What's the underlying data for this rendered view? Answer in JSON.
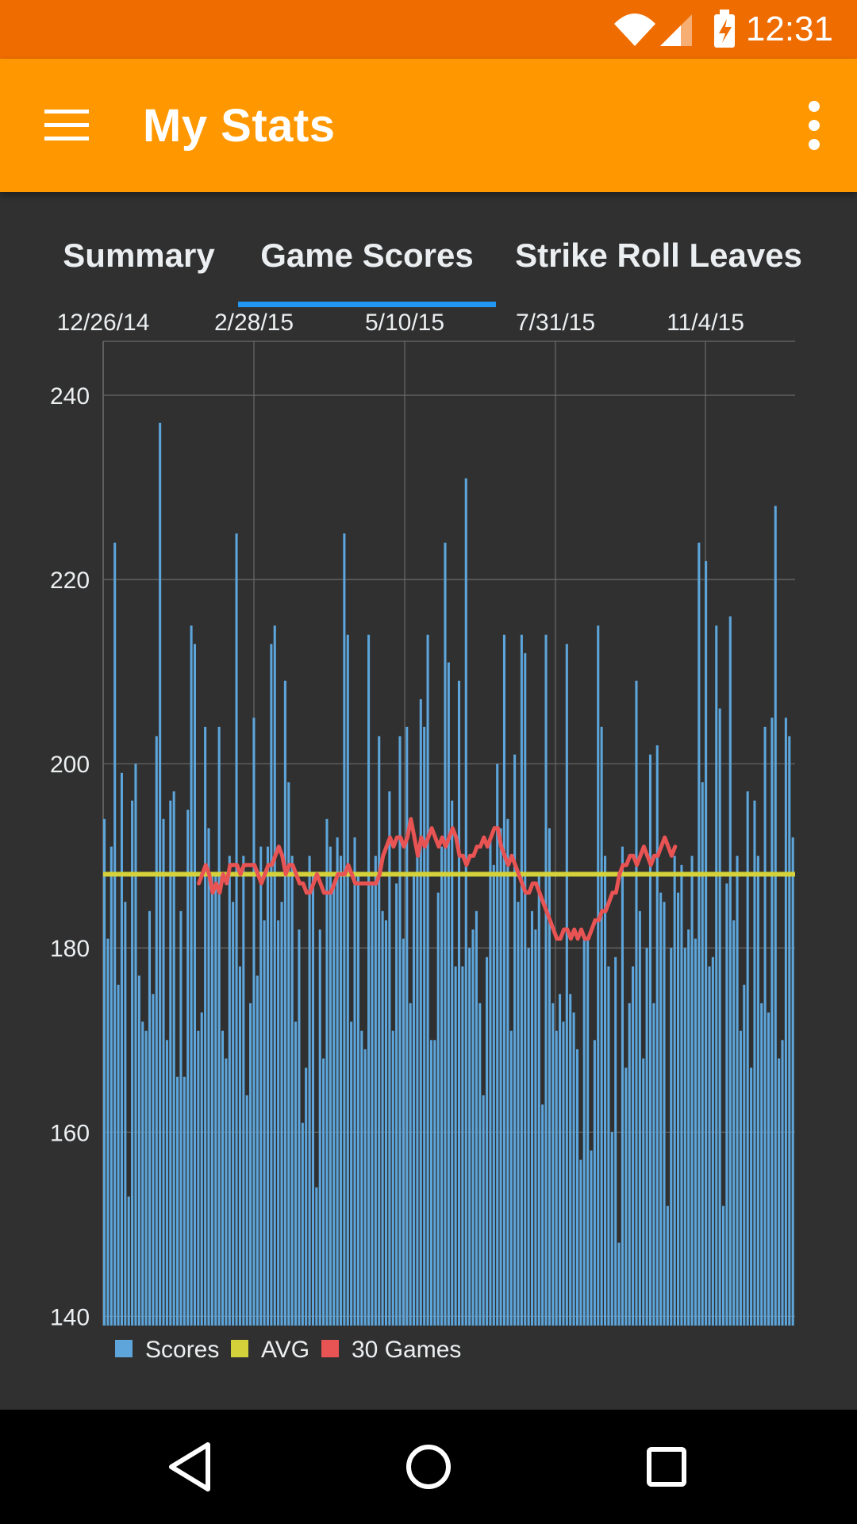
{
  "status_bar": {
    "time": "12:31",
    "icons": [
      "wifi-icon",
      "cell-signal-icon",
      "battery-charging-icon"
    ]
  },
  "app_bar": {
    "title": "My Stats",
    "menu_icon": "hamburger-menu-icon",
    "more_icon": "more-vert-icon"
  },
  "tabs": [
    {
      "label": "Summary",
      "selected": false
    },
    {
      "label": "Game Scores",
      "selected": true
    },
    {
      "label": "Strike Roll Leaves",
      "selected": false
    }
  ],
  "colors": {
    "status_bar": "#EF6C00",
    "app_bar": "#FF9800",
    "background": "#303030",
    "tab_indicator": "#2196F3",
    "scores": "#5DA5DA",
    "avg": "#D4D13A",
    "thirty_games": "#E85353"
  },
  "chart_data": {
    "type": "bar",
    "x_tick_labels": [
      "12/26/14",
      "2/28/15",
      "5/10/15",
      "7/31/15",
      "11/4/15"
    ],
    "y_tick_labels": [
      "240",
      "220",
      "200",
      "180",
      "160",
      "140"
    ],
    "y_ticks": [
      240,
      220,
      200,
      180,
      160,
      140
    ],
    "ylim": [
      139,
      245
    ],
    "grid": true,
    "legend_position": "bottom-left",
    "legend": [
      "Scores",
      "AVG",
      "30 Games"
    ],
    "series": [
      {
        "name": "Scores",
        "type": "bar",
        "values": [
          194,
          181,
          191,
          224,
          176,
          199,
          185,
          153,
          196,
          200,
          177,
          172,
          171,
          184,
          175,
          203,
          237,
          194,
          170,
          196,
          197,
          166,
          184,
          166,
          195,
          215,
          213,
          171,
          173,
          204,
          193,
          188,
          188,
          204,
          171,
          168,
          190,
          185,
          225,
          178,
          190,
          164,
          174,
          205,
          177,
          191,
          183,
          191,
          213,
          215,
          183,
          185,
          209,
          198,
          190,
          172,
          182,
          161,
          167,
          190,
          188,
          154,
          182,
          168,
          194,
          191,
          187,
          192,
          190,
          225,
          214,
          172,
          192,
          188,
          171,
          169,
          214,
          187,
          190,
          203,
          184,
          183,
          197,
          171,
          187,
          203,
          181,
          204,
          174,
          188,
          190,
          207,
          204,
          214,
          170,
          170,
          186,
          191,
          224,
          211,
          196,
          178,
          209,
          178,
          231,
          180,
          182,
          184,
          174,
          164,
          179,
          192,
          189,
          200,
          193,
          214,
          194,
          171,
          201,
          185,
          214,
          212,
          180,
          184,
          182,
          188,
          163,
          214,
          193,
          174,
          171,
          175,
          172,
          213,
          175,
          173,
          169,
          157,
          181,
          181,
          158,
          170,
          215,
          204,
          190,
          178,
          160,
          179,
          148,
          191,
          167,
          174,
          178,
          209,
          184,
          168,
          180,
          201,
          174,
          202,
          186,
          185,
          152,
          180,
          190,
          186,
          189,
          180,
          182,
          190,
          181,
          224,
          198,
          222,
          178,
          179,
          215,
          206,
          152,
          187,
          216,
          183,
          190,
          171,
          176,
          197,
          167,
          196,
          190,
          174,
          204,
          173,
          205,
          228,
          168,
          170,
          205,
          203,
          192
        ]
      },
      {
        "name": "AVG",
        "type": "line",
        "value": 188
      },
      {
        "name": "30 Games",
        "type": "line",
        "start_index": 27,
        "values": [
          187,
          188,
          189,
          188,
          186,
          187,
          186,
          188,
          187,
          189,
          189,
          189,
          188,
          189,
          189,
          189,
          189,
          188,
          187,
          188,
          189,
          189,
          190,
          191,
          190,
          188,
          189,
          189,
          188,
          187,
          187,
          186,
          186,
          187,
          188,
          187,
          186,
          186,
          186,
          187,
          188,
          188,
          188,
          189,
          188,
          187,
          187,
          187,
          187,
          187,
          187,
          187,
          188,
          190,
          191,
          192,
          191,
          192,
          192,
          191,
          192,
          194,
          192,
          190,
          192,
          191,
          192,
          193,
          192,
          191,
          192,
          191,
          192,
          193,
          192,
          190,
          190,
          189,
          190,
          190,
          191,
          191,
          192,
          191,
          192,
          193,
          193,
          191,
          190,
          189,
          190,
          189,
          188,
          187,
          186,
          186,
          187,
          187,
          186,
          185,
          184,
          183,
          182,
          181,
          181,
          182,
          182,
          181,
          182,
          181,
          182,
          181,
          181,
          182,
          183,
          183,
          184,
          184,
          185,
          186,
          186,
          188,
          189,
          189,
          190,
          190,
          189,
          190,
          191,
          190,
          189,
          190,
          190,
          191,
          192,
          191,
          190,
          191
        ]
      }
    ]
  }
}
